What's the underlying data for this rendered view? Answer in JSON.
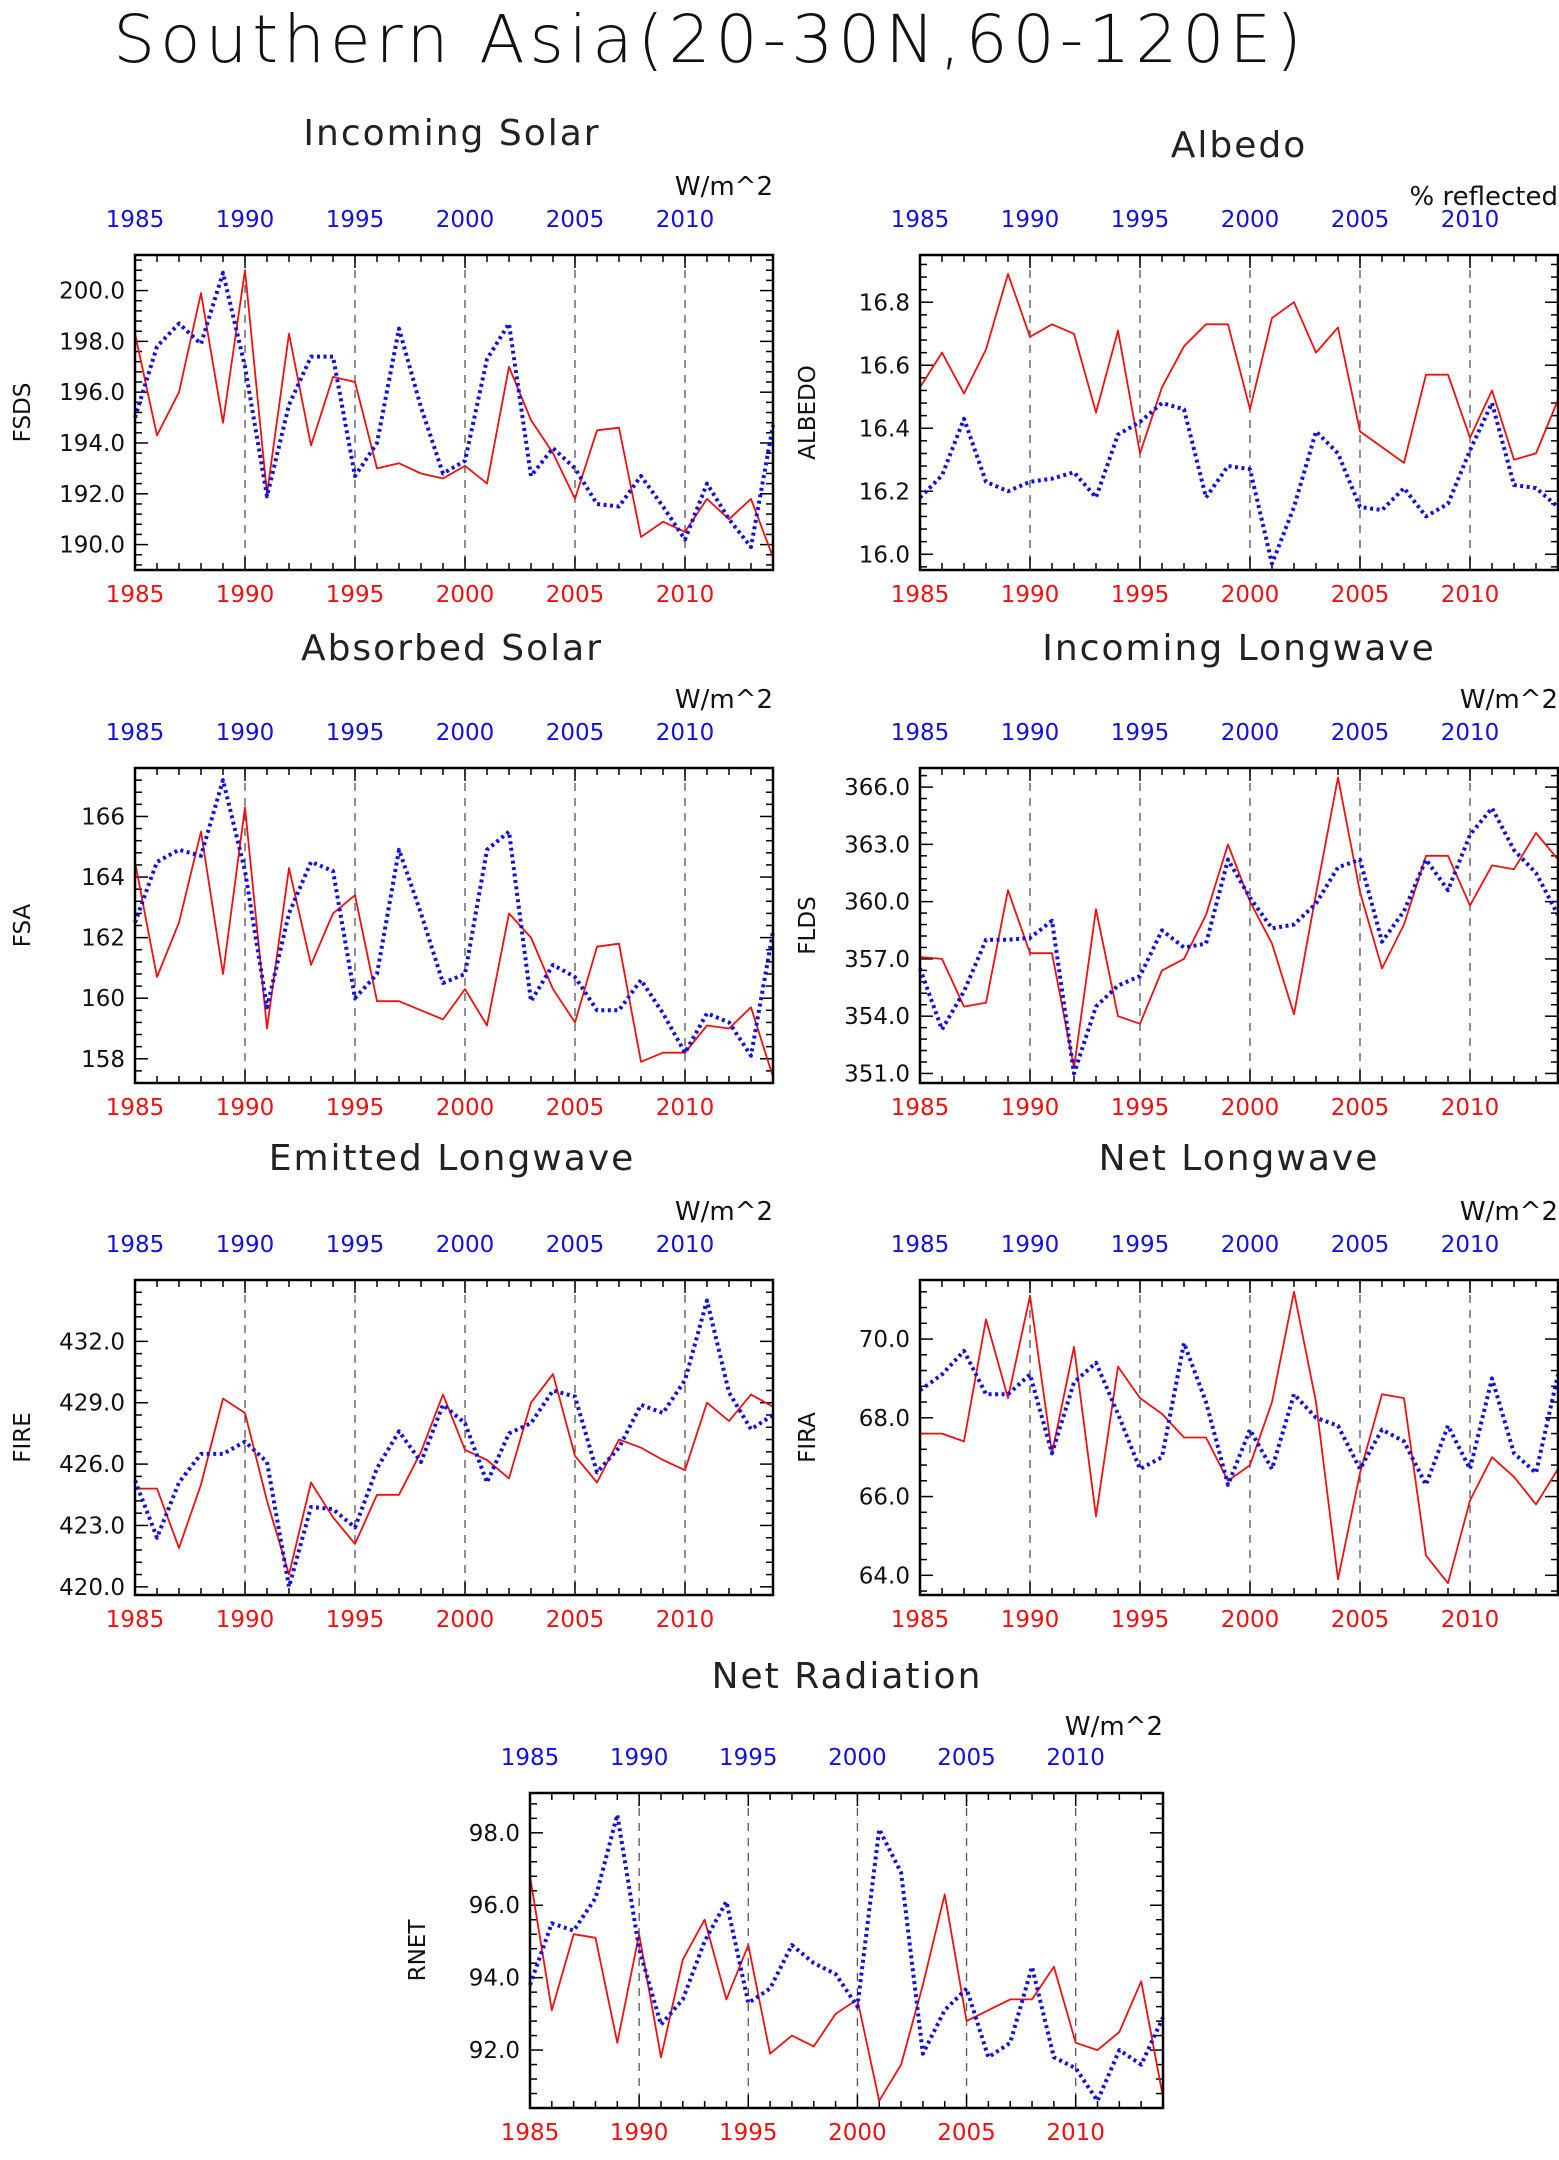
{
  "title": "Southern Asia(20-30N,60-120E)",
  "colors": {
    "series_red": "#ee1111",
    "series_blue": "#1111dd",
    "axis": "#000000"
  },
  "chart_data": [
    {
      "type": "line",
      "title": "Incoming Solar",
      "units": "W/m^2",
      "ylabel": "FSDS",
      "xlim": [
        1985,
        2014
      ],
      "ylim": [
        189.0,
        201.4
      ],
      "yticks": [
        190.0,
        192.0,
        194.0,
        196.0,
        198.0,
        200.0
      ],
      "ytick_labels": [
        "190.0",
        "192.0",
        "194.0",
        "196.0",
        "198.0",
        "200.0"
      ],
      "xticks": [
        1985,
        1990,
        1995,
        2000,
        2005,
        2010
      ],
      "xtick_labels": [
        "1985",
        "1990",
        "1995",
        "2000",
        "2005",
        "2010"
      ],
      "x": [
        1985,
        1986,
        1987,
        1988,
        1989,
        1990,
        1991,
        1992,
        1993,
        1994,
        1995,
        1996,
        1997,
        1998,
        1999,
        2000,
        2001,
        2002,
        2003,
        2004,
        2005,
        2006,
        2007,
        2008,
        2009,
        2010,
        2011,
        2012,
        2013,
        2014
      ],
      "series": [
        {
          "color": "red",
          "values": [
            198.3,
            194.3,
            196.0,
            199.9,
            194.8,
            200.8,
            192.0,
            198.3,
            193.9,
            196.6,
            196.4,
            193.0,
            193.2,
            192.8,
            192.6,
            193.1,
            192.4,
            197.0,
            194.9,
            193.6,
            191.8,
            194.5,
            194.6,
            190.3,
            190.9,
            190.5,
            191.8,
            191.0,
            191.8,
            189.5
          ]
        },
        {
          "color": "blue",
          "values": [
            195.0,
            197.8,
            198.7,
            197.9,
            200.7,
            197.0,
            191.9,
            195.5,
            197.4,
            197.4,
            192.7,
            194.0,
            198.5,
            195.4,
            192.8,
            193.3,
            197.3,
            198.7,
            192.7,
            193.8,
            193.0,
            191.6,
            191.5,
            192.7,
            191.5,
            190.2,
            192.4,
            191.0,
            189.9,
            194.7
          ]
        }
      ]
    },
    {
      "type": "line",
      "title": "Albedo",
      "units": "% reflected",
      "ylabel": "ALBEDO",
      "xlim": [
        1985,
        2014
      ],
      "ylim": [
        15.95,
        16.95
      ],
      "yticks": [
        16.0,
        16.2,
        16.4,
        16.6,
        16.8
      ],
      "ytick_labels": [
        "16.0",
        "16.2",
        "16.4",
        "16.6",
        "16.8"
      ],
      "xticks": [
        1985,
        1990,
        1995,
        2000,
        2005,
        2010
      ],
      "xtick_labels": [
        "1985",
        "1990",
        "1995",
        "2000",
        "2005",
        "2010"
      ],
      "x": [
        1985,
        1986,
        1987,
        1988,
        1989,
        1990,
        1991,
        1992,
        1993,
        1994,
        1995,
        1996,
        1997,
        1998,
        1999,
        2000,
        2001,
        2002,
        2003,
        2004,
        2005,
        2006,
        2007,
        2008,
        2009,
        2010,
        2011,
        2012,
        2013,
        2014
      ],
      "series": [
        {
          "color": "red",
          "values": [
            16.53,
            16.64,
            16.51,
            16.65,
            16.89,
            16.69,
            16.73,
            16.7,
            16.45,
            16.71,
            16.32,
            16.53,
            16.66,
            16.73,
            16.73,
            16.46,
            16.75,
            16.8,
            16.64,
            16.72,
            16.39,
            16.34,
            16.29,
            16.57,
            16.57,
            16.37,
            16.52,
            16.3,
            16.32,
            16.49
          ]
        },
        {
          "color": "blue",
          "values": [
            16.18,
            16.25,
            16.43,
            16.23,
            16.2,
            16.23,
            16.24,
            16.26,
            16.18,
            16.38,
            16.42,
            16.48,
            16.46,
            16.18,
            16.28,
            16.27,
            15.97,
            16.15,
            16.39,
            16.32,
            16.15,
            16.14,
            16.21,
            16.12,
            16.16,
            16.33,
            16.48,
            16.22,
            16.21,
            16.15
          ]
        }
      ]
    },
    {
      "type": "line",
      "title": "Absorbed Solar",
      "units": "W/m^2",
      "ylabel": "FSA",
      "xlim": [
        1985,
        2014
      ],
      "ylim": [
        157.2,
        167.6
      ],
      "yticks": [
        158,
        160,
        162,
        164,
        166
      ],
      "ytick_labels": [
        "158",
        "160",
        "162",
        "164",
        "166"
      ],
      "xticks": [
        1985,
        1990,
        1995,
        2000,
        2005,
        2010
      ],
      "xtick_labels": [
        "1985",
        "1990",
        "1995",
        "2000",
        "2005",
        "2010"
      ],
      "x": [
        1985,
        1986,
        1987,
        1988,
        1989,
        1990,
        1991,
        1992,
        1993,
        1994,
        1995,
        1996,
        1997,
        1998,
        1999,
        2000,
        2001,
        2002,
        2003,
        2004,
        2005,
        2006,
        2007,
        2008,
        2009,
        2010,
        2011,
        2012,
        2013,
        2014
      ],
      "series": [
        {
          "color": "red",
          "values": [
            164.5,
            160.7,
            162.5,
            165.5,
            160.8,
            166.3,
            159.0,
            164.3,
            161.1,
            162.8,
            163.4,
            159.9,
            159.9,
            159.6,
            159.3,
            160.3,
            159.1,
            162.8,
            162.0,
            160.3,
            159.2,
            161.7,
            161.8,
            157.9,
            158.2,
            158.2,
            159.1,
            159.0,
            159.7,
            157.4
          ]
        },
        {
          "color": "blue",
          "values": [
            162.5,
            164.5,
            164.9,
            164.7,
            167.2,
            164.2,
            159.7,
            162.8,
            164.5,
            164.2,
            160.0,
            160.8,
            164.9,
            162.8,
            160.5,
            160.8,
            164.9,
            165.5,
            159.9,
            161.1,
            160.7,
            159.6,
            159.6,
            160.6,
            159.5,
            158.2,
            159.5,
            159.2,
            158.1,
            162.2
          ]
        }
      ]
    },
    {
      "type": "line",
      "title": "Incoming Longwave",
      "units": "W/m^2",
      "ylabel": "FLDS",
      "xlim": [
        1985,
        2014
      ],
      "ylim": [
        350.5,
        367.0
      ],
      "yticks": [
        351.0,
        354.0,
        357.0,
        360.0,
        363.0,
        366.0
      ],
      "ytick_labels": [
        "351.0",
        "354.0",
        "357.0",
        "360.0",
        "363.0",
        "366.0"
      ],
      "xticks": [
        1985,
        1990,
        1995,
        2000,
        2005,
        2010
      ],
      "xtick_labels": [
        "1985",
        "1990",
        "1995",
        "2000",
        "2005",
        "2010"
      ],
      "x": [
        1985,
        1986,
        1987,
        1988,
        1989,
        1990,
        1991,
        1992,
        1993,
        1994,
        1995,
        1996,
        1997,
        1998,
        1999,
        2000,
        2001,
        2002,
        2003,
        2004,
        2005,
        2006,
        2007,
        2008,
        2009,
        2010,
        2011,
        2012,
        2013,
        2014
      ],
      "series": [
        {
          "color": "red",
          "values": [
            357.1,
            357.0,
            354.5,
            354.7,
            360.6,
            357.3,
            357.3,
            351.3,
            359.6,
            354.0,
            353.6,
            356.4,
            357.0,
            359.3,
            363.0,
            360.0,
            357.8,
            354.1,
            360.4,
            366.5,
            360.5,
            356.5,
            358.8,
            362.4,
            362.4,
            359.8,
            361.9,
            361.7,
            363.6,
            362.2
          ]
        },
        {
          "color": "blue",
          "values": [
            356.5,
            353.3,
            355.3,
            358.0,
            358.0,
            358.1,
            359.0,
            351.0,
            354.5,
            355.6,
            356.1,
            358.5,
            357.6,
            357.8,
            362.2,
            360.2,
            358.6,
            358.8,
            359.9,
            361.8,
            362.2,
            357.9,
            359.5,
            362.2,
            360.6,
            363.5,
            364.9,
            362.7,
            361.5,
            359.3
          ]
        }
      ]
    },
    {
      "type": "line",
      "title": "Emitted Longwave",
      "units": "W/m^2",
      "ylabel": "FIRE",
      "xlim": [
        1985,
        2014
      ],
      "ylim": [
        419.6,
        435.0
      ],
      "yticks": [
        420.0,
        423.0,
        426.0,
        429.0,
        432.0
      ],
      "ytick_labels": [
        "420.0",
        "423.0",
        "426.0",
        "429.0",
        "432.0"
      ],
      "xticks": [
        1985,
        1990,
        1995,
        2000,
        2005,
        2010
      ],
      "xtick_labels": [
        "1985",
        "1990",
        "1995",
        "2000",
        "2005",
        "2010"
      ],
      "x": [
        1985,
        1986,
        1987,
        1988,
        1989,
        1990,
        1991,
        1992,
        1993,
        1994,
        1995,
        1996,
        1997,
        1998,
        1999,
        2000,
        2001,
        2002,
        2003,
        2004,
        2005,
        2006,
        2007,
        2008,
        2009,
        2010,
        2011,
        2012,
        2013,
        2014
      ],
      "series": [
        {
          "color": "red",
          "values": [
            424.8,
            424.8,
            421.9,
            425.0,
            429.2,
            428.5,
            424.2,
            420.6,
            425.1,
            423.4,
            422.1,
            424.5,
            424.5,
            426.6,
            429.4,
            426.7,
            426.2,
            425.3,
            429.0,
            430.4,
            426.4,
            425.1,
            427.2,
            426.8,
            426.2,
            425.7,
            429.0,
            428.1,
            429.4,
            428.8
          ]
        },
        {
          "color": "blue",
          "values": [
            425.2,
            422.4,
            425.1,
            426.5,
            426.5,
            427.1,
            426.1,
            420.0,
            423.9,
            423.8,
            422.9,
            425.8,
            427.6,
            426.1,
            428.9,
            428.0,
            425.1,
            427.5,
            428.0,
            429.6,
            429.3,
            425.6,
            426.8,
            428.9,
            428.5,
            430.1,
            434.0,
            429.5,
            427.7,
            428.4
          ]
        }
      ]
    },
    {
      "type": "line",
      "title": "Net Longwave",
      "units": "W/m^2",
      "ylabel": "FIRA",
      "xlim": [
        1985,
        2014
      ],
      "ylim": [
        63.5,
        71.5
      ],
      "yticks": [
        64.0,
        66.0,
        68.0,
        70.0
      ],
      "ytick_labels": [
        "64.0",
        "66.0",
        "68.0",
        "70.0"
      ],
      "xticks": [
        1985,
        1990,
        1995,
        2000,
        2005,
        2010
      ],
      "xtick_labels": [
        "1985",
        "1990",
        "1995",
        "2000",
        "2005",
        "2010"
      ],
      "x": [
        1985,
        1986,
        1987,
        1988,
        1989,
        1990,
        1991,
        1992,
        1993,
        1994,
        1995,
        1996,
        1997,
        1998,
        1999,
        2000,
        2001,
        2002,
        2003,
        2004,
        2005,
        2006,
        2007,
        2008,
        2009,
        2010,
        2011,
        2012,
        2013,
        2014
      ],
      "series": [
        {
          "color": "red",
          "values": [
            67.6,
            67.6,
            67.4,
            70.5,
            68.5,
            71.1,
            67.1,
            69.8,
            65.5,
            69.3,
            68.5,
            68.1,
            67.5,
            67.5,
            66.4,
            66.8,
            68.4,
            71.2,
            68.4,
            63.9,
            66.6,
            68.6,
            68.5,
            64.5,
            63.8,
            65.9,
            67.0,
            66.5,
            65.8,
            66.7
          ]
        },
        {
          "color": "blue",
          "values": [
            68.7,
            69.1,
            69.7,
            68.6,
            68.6,
            69.1,
            67.1,
            68.9,
            69.4,
            68.1,
            66.7,
            67.0,
            69.9,
            68.4,
            66.3,
            67.7,
            66.7,
            68.6,
            68.0,
            67.8,
            66.7,
            67.7,
            67.4,
            66.3,
            67.8,
            66.7,
            69.0,
            67.1,
            66.6,
            69.1
          ]
        }
      ]
    },
    {
      "type": "line",
      "title": "Net Radiation",
      "units": "W/m^2",
      "ylabel": "RNET",
      "xlim": [
        1985,
        2014
      ],
      "ylim": [
        90.4,
        99.1
      ],
      "yticks": [
        92.0,
        94.0,
        96.0,
        98.0
      ],
      "ytick_labels": [
        "92.0",
        "94.0",
        "96.0",
        "98.0"
      ],
      "xticks": [
        1985,
        1990,
        1995,
        2000,
        2005,
        2010
      ],
      "xtick_labels": [
        "1985",
        "1990",
        "1995",
        "2000",
        "2005",
        "2010"
      ],
      "x": [
        1985,
        1986,
        1987,
        1988,
        1989,
        1990,
        1991,
        1992,
        1993,
        1994,
        1995,
        1996,
        1997,
        1998,
        1999,
        2000,
        2001,
        2002,
        2003,
        2004,
        2005,
        2006,
        2007,
        2008,
        2009,
        2010,
        2011,
        2012,
        2013,
        2014
      ],
      "series": [
        {
          "color": "red",
          "values": [
            96.8,
            93.1,
            95.2,
            95.1,
            92.2,
            95.2,
            91.8,
            94.5,
            95.6,
            93.4,
            94.9,
            91.9,
            92.4,
            92.1,
            93.0,
            93.4,
            90.6,
            91.6,
            93.8,
            96.3,
            92.8,
            93.1,
            93.4,
            93.4,
            94.3,
            92.2,
            92.0,
            92.5,
            93.9,
            90.7
          ]
        },
        {
          "color": "blue",
          "values": [
            93.8,
            95.5,
            95.3,
            96.2,
            98.5,
            94.8,
            92.7,
            93.4,
            95.0,
            96.1,
            93.3,
            93.7,
            94.9,
            94.4,
            94.1,
            93.2,
            98.1,
            96.9,
            91.9,
            93.1,
            93.7,
            91.8,
            92.2,
            94.3,
            91.8,
            91.5,
            90.6,
            92.0,
            91.6,
            92.9
          ]
        }
      ]
    }
  ]
}
